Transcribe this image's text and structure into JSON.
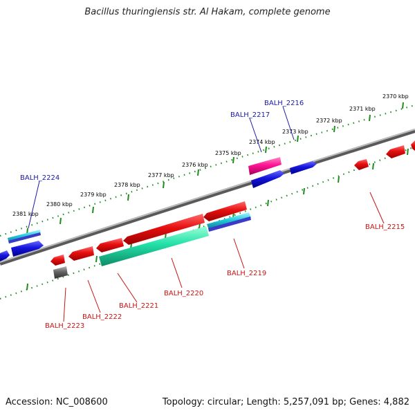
{
  "header": {
    "title": "Bacillus thuringiensis str. Al Hakam, complete genome"
  },
  "footer": {
    "accession": "Accession: NC_008600",
    "topology": "Topology: circular; Length: 5,257,091 bp; Genes: 4,882"
  },
  "kbp_labels": [
    "2370 kbp",
    "2371 kbp",
    "2372 kbp",
    "2373 kbp",
    "2374 kbp",
    "2375 kbp",
    "2376 kbp",
    "2377 kbp",
    "2378 kbp",
    "2379 kbp",
    "2380 kbp",
    "2381 kbp"
  ],
  "gene_labels": {
    "fwd": [
      "BALH_2216",
      "BALH_2217",
      "BALH_2224"
    ],
    "rev": [
      "BALH_2215",
      "BALH_2219",
      "BALH_2220",
      "BALH_2221",
      "BALH_2222",
      "BALH_2223"
    ]
  },
  "colors": {
    "forward_gene": "#1414dc",
    "reverse_gene": "#e60f0f",
    "rna_gene": "#ff1493",
    "teal_gene": "#22e0a8",
    "cyan_gene": "#22c8dc",
    "pseudo_gene": "#646464",
    "backbone": "#8a8a8a",
    "tick": "#1e8c1e"
  }
}
